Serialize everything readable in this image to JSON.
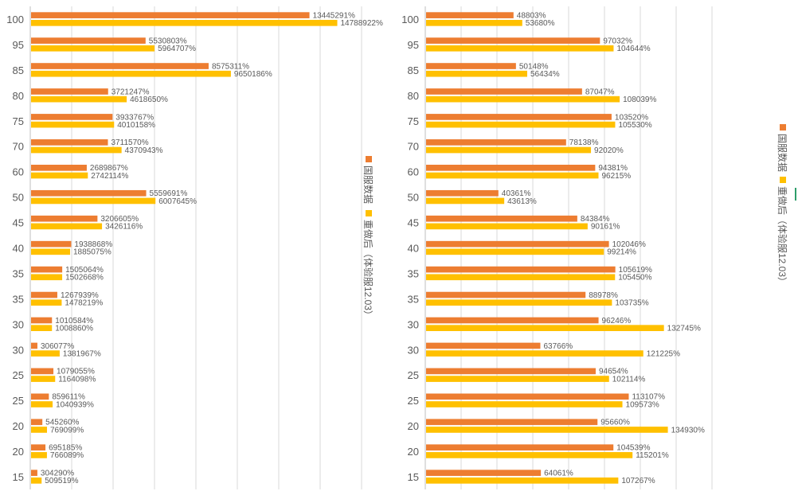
{
  "colors": {
    "series1": "#ED7D31",
    "series2": "#FFC000",
    "grid": "#D9D9D9",
    "text": "#595959"
  },
  "legend": {
    "series1_name": "国服数据",
    "series2_name": "重做后（体验服12.03）"
  },
  "chart_data": [
    {
      "type": "bar",
      "orientation": "horizontal",
      "legend_position": "right",
      "categories": [
        "100",
        "95",
        "85",
        "80",
        "75",
        "70",
        "60",
        "50",
        "45",
        "40",
        "35",
        "35",
        "30",
        "30",
        "25",
        "25",
        "20",
        "20",
        "15"
      ],
      "series": [
        {
          "name": "国服数据",
          "values": [
            13445291,
            5530803,
            8575311,
            3721247,
            3933767,
            3711570,
            2689867,
            5559691,
            3206605,
            1938868,
            1505064,
            1267939,
            1010584,
            306077,
            1079055,
            859611,
            545260,
            695185,
            304290
          ],
          "labels": [
            "13445291%",
            "5530803%",
            "8575311%",
            "3721247%",
            "3933767%",
            "3711570%",
            "2689867%",
            "5559691%",
            "3206605%",
            "1938868%",
            "1505064%",
            "1267939%",
            "1010584%",
            "306077%",
            "1079055%",
            "859611%",
            "545260%",
            "695185%",
            "304290%"
          ]
        },
        {
          "name": "重做后（体验服12.03）",
          "values": [
            14788922,
            5964707,
            9650186,
            4618650,
            4010158,
            4370943,
            2742114,
            6007645,
            3426116,
            1885075,
            1502668,
            1478219,
            1008860,
            1381967,
            1164098,
            1040939,
            769099,
            766089,
            509519
          ],
          "labels": [
            "14788922%",
            "5964707%",
            "9650186%",
            "4618650%",
            "4010158%",
            "4370943%",
            "2742114%",
            "6007645%",
            "3426116%",
            "1885075%",
            "1502668%",
            "1478219%",
            "1008860%",
            "1381967%",
            "1164098%",
            "1040939%",
            "769099%",
            "766089%",
            "509519%"
          ]
        }
      ],
      "xlim": [
        0,
        16000000
      ],
      "grid": true
    },
    {
      "type": "bar",
      "orientation": "horizontal",
      "legend_position": "right",
      "categories": [
        "100",
        "95",
        "85",
        "80",
        "75",
        "70",
        "60",
        "50",
        "45",
        "40",
        "35",
        "35",
        "30",
        "30",
        "25",
        "25",
        "20",
        "20",
        "15"
      ],
      "series": [
        {
          "name": "国服数据",
          "values": [
            48803,
            97032,
            50148,
            87047,
            103520,
            78138,
            94381,
            40361,
            84384,
            102046,
            105619,
            88978,
            96246,
            63766,
            94654,
            113107,
            95660,
            104539,
            64061
          ],
          "labels": [
            "48803%",
            "97032%",
            "50148%",
            "87047%",
            "103520%",
            "78138%",
            "94381%",
            "40361%",
            "84384%",
            "102046%",
            "105619%",
            "88978%",
            "96246%",
            "63766%",
            "94654%",
            "113107%",
            "95660%",
            "104539%",
            "64061%"
          ]
        },
        {
          "name": "重做后（体验服12.03）",
          "values": [
            53680,
            104644,
            56434,
            108039,
            105530,
            92020,
            96215,
            43613,
            90161,
            99214,
            105450,
            103735,
            132745,
            121225,
            102114,
            109573,
            134930,
            115201,
            107267
          ],
          "labels": [
            "53680%",
            "104644%",
            "56434%",
            "108039%",
            "105530%",
            "92020%",
            "96215%",
            "43613%",
            "90161%",
            "99214%",
            "105450%",
            "103735%",
            "132745%",
            "121225%",
            "102114%",
            "109573%",
            "134930%",
            "115201%",
            "107267%"
          ]
        }
      ],
      "xlim": [
        0,
        160000
      ],
      "grid": true
    }
  ]
}
